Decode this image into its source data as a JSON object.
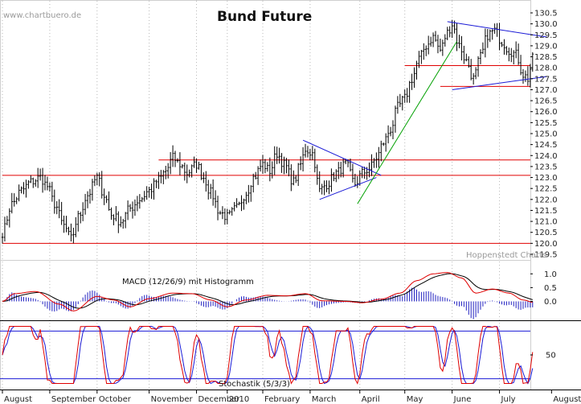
{
  "page": {
    "watermark": "www.chartbuero.de",
    "title": "Bund Future",
    "credit": "Hoppenstedt Charts"
  },
  "chart_data": [
    {
      "type": "candlestick",
      "title": "Bund Future",
      "ylim": [
        119.5,
        130.5
      ],
      "yticks": [
        119.5,
        120.0,
        120.5,
        121.0,
        121.5,
        122.0,
        122.5,
        123.0,
        123.5,
        124.0,
        124.5,
        125.0,
        125.5,
        126.0,
        126.5,
        127.0,
        127.5,
        128.0,
        128.5,
        129.0,
        129.5,
        130.0,
        130.5
      ],
      "xlim": [
        0,
        220
      ],
      "months": [
        {
          "label": "August",
          "x": 0
        },
        {
          "label": "September",
          "x": 20
        },
        {
          "label": "October",
          "x": 40
        },
        {
          "label": "November",
          "x": 62
        },
        {
          "label": "December",
          "x": 82
        },
        {
          "label": "2010",
          "x": 95
        },
        {
          "label": "February",
          "x": 110
        },
        {
          "label": "March",
          "x": 130
        },
        {
          "label": "April",
          "x": 151
        },
        {
          "label": "May",
          "x": 170
        },
        {
          "label": "June",
          "x": 190
        },
        {
          "label": "July",
          "x": 210
        },
        {
          "label": "August",
          "x": 232
        }
      ],
      "close_anchors": [
        {
          "x": 0,
          "y": 120.5
        },
        {
          "x": 4,
          "y": 121.8
        },
        {
          "x": 8,
          "y": 122.4
        },
        {
          "x": 12,
          "y": 122.8
        },
        {
          "x": 16,
          "y": 123.0
        },
        {
          "x": 19,
          "y": 122.6
        },
        {
          "x": 22,
          "y": 121.8
        },
        {
          "x": 26,
          "y": 120.8
        },
        {
          "x": 29,
          "y": 120.2
        },
        {
          "x": 32,
          "y": 121.2
        },
        {
          "x": 36,
          "y": 122.2
        },
        {
          "x": 40,
          "y": 123.0
        },
        {
          "x": 43,
          "y": 122.2
        },
        {
          "x": 46,
          "y": 121.3
        },
        {
          "x": 50,
          "y": 121.0
        },
        {
          "x": 54,
          "y": 121.6
        },
        {
          "x": 58,
          "y": 122.0
        },
        {
          "x": 62,
          "y": 122.4
        },
        {
          "x": 66,
          "y": 122.9
        },
        {
          "x": 69,
          "y": 123.3
        },
        {
          "x": 72,
          "y": 123.9
        },
        {
          "x": 75,
          "y": 123.6
        },
        {
          "x": 78,
          "y": 123.2
        },
        {
          "x": 82,
          "y": 123.6
        },
        {
          "x": 85,
          "y": 123.0
        },
        {
          "x": 88,
          "y": 122.3
        },
        {
          "x": 92,
          "y": 121.4
        },
        {
          "x": 95,
          "y": 121.2
        },
        {
          "x": 99,
          "y": 121.6
        },
        {
          "x": 103,
          "y": 122.3
        },
        {
          "x": 106,
          "y": 123.0
        },
        {
          "x": 110,
          "y": 123.6
        },
        {
          "x": 113,
          "y": 123.3
        },
        {
          "x": 116,
          "y": 124.1
        },
        {
          "x": 119,
          "y": 123.6
        },
        {
          "x": 123,
          "y": 122.8
        },
        {
          "x": 126,
          "y": 123.6
        },
        {
          "x": 128,
          "y": 124.3
        },
        {
          "x": 131,
          "y": 124.1
        },
        {
          "x": 134,
          "y": 122.4
        },
        {
          "x": 137,
          "y": 122.7
        },
        {
          "x": 141,
          "y": 123.2
        },
        {
          "x": 145,
          "y": 123.6
        },
        {
          "x": 149,
          "y": 122.7
        },
        {
          "x": 152,
          "y": 123.2
        },
        {
          "x": 155,
          "y": 123.4
        },
        {
          "x": 158,
          "y": 123.9
        },
        {
          "x": 161,
          "y": 124.6
        },
        {
          "x": 164,
          "y": 125.2
        },
        {
          "x": 167,
          "y": 126.2
        },
        {
          "x": 170,
          "y": 126.6
        },
        {
          "x": 173,
          "y": 127.5
        },
        {
          "x": 176,
          "y": 128.4
        },
        {
          "x": 179,
          "y": 129.0
        },
        {
          "x": 182,
          "y": 129.4
        },
        {
          "x": 185,
          "y": 128.8
        },
        {
          "x": 188,
          "y": 129.6
        },
        {
          "x": 190,
          "y": 130.0
        },
        {
          "x": 193,
          "y": 129.0
        },
        {
          "x": 196,
          "y": 128.3
        },
        {
          "x": 199,
          "y": 127.5
        },
        {
          "x": 202,
          "y": 128.5
        },
        {
          "x": 205,
          "y": 129.5
        },
        {
          "x": 208,
          "y": 129.7
        },
        {
          "x": 211,
          "y": 129.2
        },
        {
          "x": 214,
          "y": 128.8
        },
        {
          "x": 217,
          "y": 128.6
        },
        {
          "x": 220,
          "y": 127.7
        },
        {
          "x": 222,
          "y": 127.5
        },
        {
          "x": 224,
          "y": 128.4
        }
      ],
      "horizontal_lines": [
        {
          "y": 120.0,
          "x1": 0,
          "x2": 240,
          "color": "#e00000"
        },
        {
          "y": 123.1,
          "x1": 0,
          "x2": 240,
          "color": "#e00000"
        },
        {
          "y": 123.8,
          "x1": 66,
          "x2": 240,
          "color": "#e00000"
        },
        {
          "y": 127.15,
          "x1": 185,
          "x2": 240,
          "color": "#e00000"
        },
        {
          "y": 128.1,
          "x1": 170,
          "x2": 240,
          "color": "#e00000"
        }
      ],
      "trend_lines": [
        {
          "x1": 127,
          "y1": 124.7,
          "x2": 160,
          "y2": 123.1,
          "color": "#1a1ad6"
        },
        {
          "x1": 134,
          "y1": 122.0,
          "x2": 158,
          "y2": 123.0,
          "color": "#1a1ad6"
        },
        {
          "x1": 150,
          "y1": 121.8,
          "x2": 192,
          "y2": 129.2,
          "color": "#00a000"
        },
        {
          "x1": 188,
          "y1": 130.1,
          "x2": 230,
          "y2": 129.4,
          "color": "#1a1ad6"
        },
        {
          "x1": 190,
          "y1": 127.0,
          "x2": 230,
          "y2": 127.6,
          "color": "#1a1ad6"
        }
      ]
    },
    {
      "type": "line",
      "title": "MACD (12/26/9) mit Histogramm",
      "ylim": [
        -0.6,
        1.3
      ],
      "yticks": [
        0.0,
        0.5,
        1.0
      ],
      "macd_anchors": [
        {
          "x": 0,
          "y": 0.0
        },
        {
          "x": 5,
          "y": 0.28
        },
        {
          "x": 14,
          "y": 0.36
        },
        {
          "x": 24,
          "y": -0.1
        },
        {
          "x": 30,
          "y": -0.35
        },
        {
          "x": 40,
          "y": 0.18
        },
        {
          "x": 47,
          "y": 0.05
        },
        {
          "x": 54,
          "y": -0.2
        },
        {
          "x": 62,
          "y": 0.1
        },
        {
          "x": 72,
          "y": 0.3
        },
        {
          "x": 80,
          "y": 0.28
        },
        {
          "x": 88,
          "y": 0.05
        },
        {
          "x": 95,
          "y": -0.2
        },
        {
          "x": 103,
          "y": 0.05
        },
        {
          "x": 112,
          "y": 0.22
        },
        {
          "x": 120,
          "y": 0.2
        },
        {
          "x": 128,
          "y": 0.28
        },
        {
          "x": 135,
          "y": 0.02
        },
        {
          "x": 145,
          "y": 0.0
        },
        {
          "x": 152,
          "y": -0.05
        },
        {
          "x": 160,
          "y": 0.08
        },
        {
          "x": 168,
          "y": 0.3
        },
        {
          "x": 175,
          "y": 0.75
        },
        {
          "x": 182,
          "y": 1.0
        },
        {
          "x": 188,
          "y": 1.05
        },
        {
          "x": 194,
          "y": 0.85
        },
        {
          "x": 200,
          "y": 0.3
        },
        {
          "x": 207,
          "y": 0.45
        },
        {
          "x": 214,
          "y": 0.3
        },
        {
          "x": 220,
          "y": 0.05
        },
        {
          "x": 225,
          "y": -0.05
        }
      ]
    },
    {
      "type": "line",
      "title": "Stochastik (5/3/3)",
      "ylim": [
        0,
        100
      ],
      "yticks": [
        50
      ],
      "levels": [
        10,
        90
      ]
    }
  ]
}
